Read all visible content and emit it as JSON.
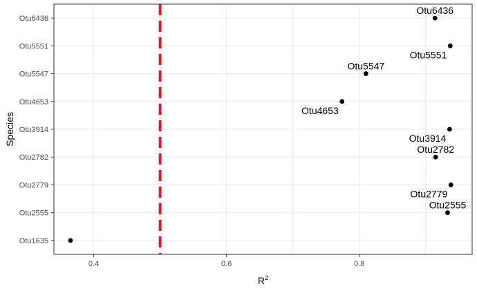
{
  "chart_data": {
    "type": "scatter",
    "title": "",
    "xlabel": "R",
    "xlabel_superscript": "2",
    "ylabel": "Species",
    "xlim": [
      0.34,
      0.97
    ],
    "x_ticks": [
      0.4,
      0.6,
      0.8
    ],
    "x_tick_labels": [
      "0.4",
      "0.6",
      "0.8"
    ],
    "categories": [
      "Otu1635",
      "Otu2555",
      "Otu2779",
      "Otu2782",
      "Otu3914",
      "Otu4653",
      "Otu5547",
      "Otu5551",
      "Otu6436"
    ],
    "points": [
      {
        "species": "Otu1635",
        "r2": 0.365,
        "label": "",
        "label_side": "none"
      },
      {
        "species": "Otu2555",
        "r2": 0.933,
        "label": "Otu2555",
        "label_side": "above"
      },
      {
        "species": "Otu2779",
        "r2": 0.938,
        "label": "Otu2779",
        "label_side": "below"
      },
      {
        "species": "Otu2782",
        "r2": 0.915,
        "label": "Otu2782",
        "label_side": "above"
      },
      {
        "species": "Otu3914",
        "r2": 0.936,
        "label": "Otu3914",
        "label_side": "below"
      },
      {
        "species": "Otu4653",
        "r2": 0.774,
        "label": "Otu4653",
        "label_side": "below"
      },
      {
        "species": "Otu5547",
        "r2": 0.81,
        "label": "Otu5547",
        "label_side": "above"
      },
      {
        "species": "Otu5551",
        "r2": 0.937,
        "label": "Otu5551",
        "label_side": "below"
      },
      {
        "species": "Otu6436",
        "r2": 0.914,
        "label": "Otu6436",
        "label_side": "above"
      }
    ],
    "reference_line": {
      "x": 0.5,
      "color": "#e41a1c",
      "style": "dashed"
    },
    "grid": true,
    "legend": "none"
  }
}
